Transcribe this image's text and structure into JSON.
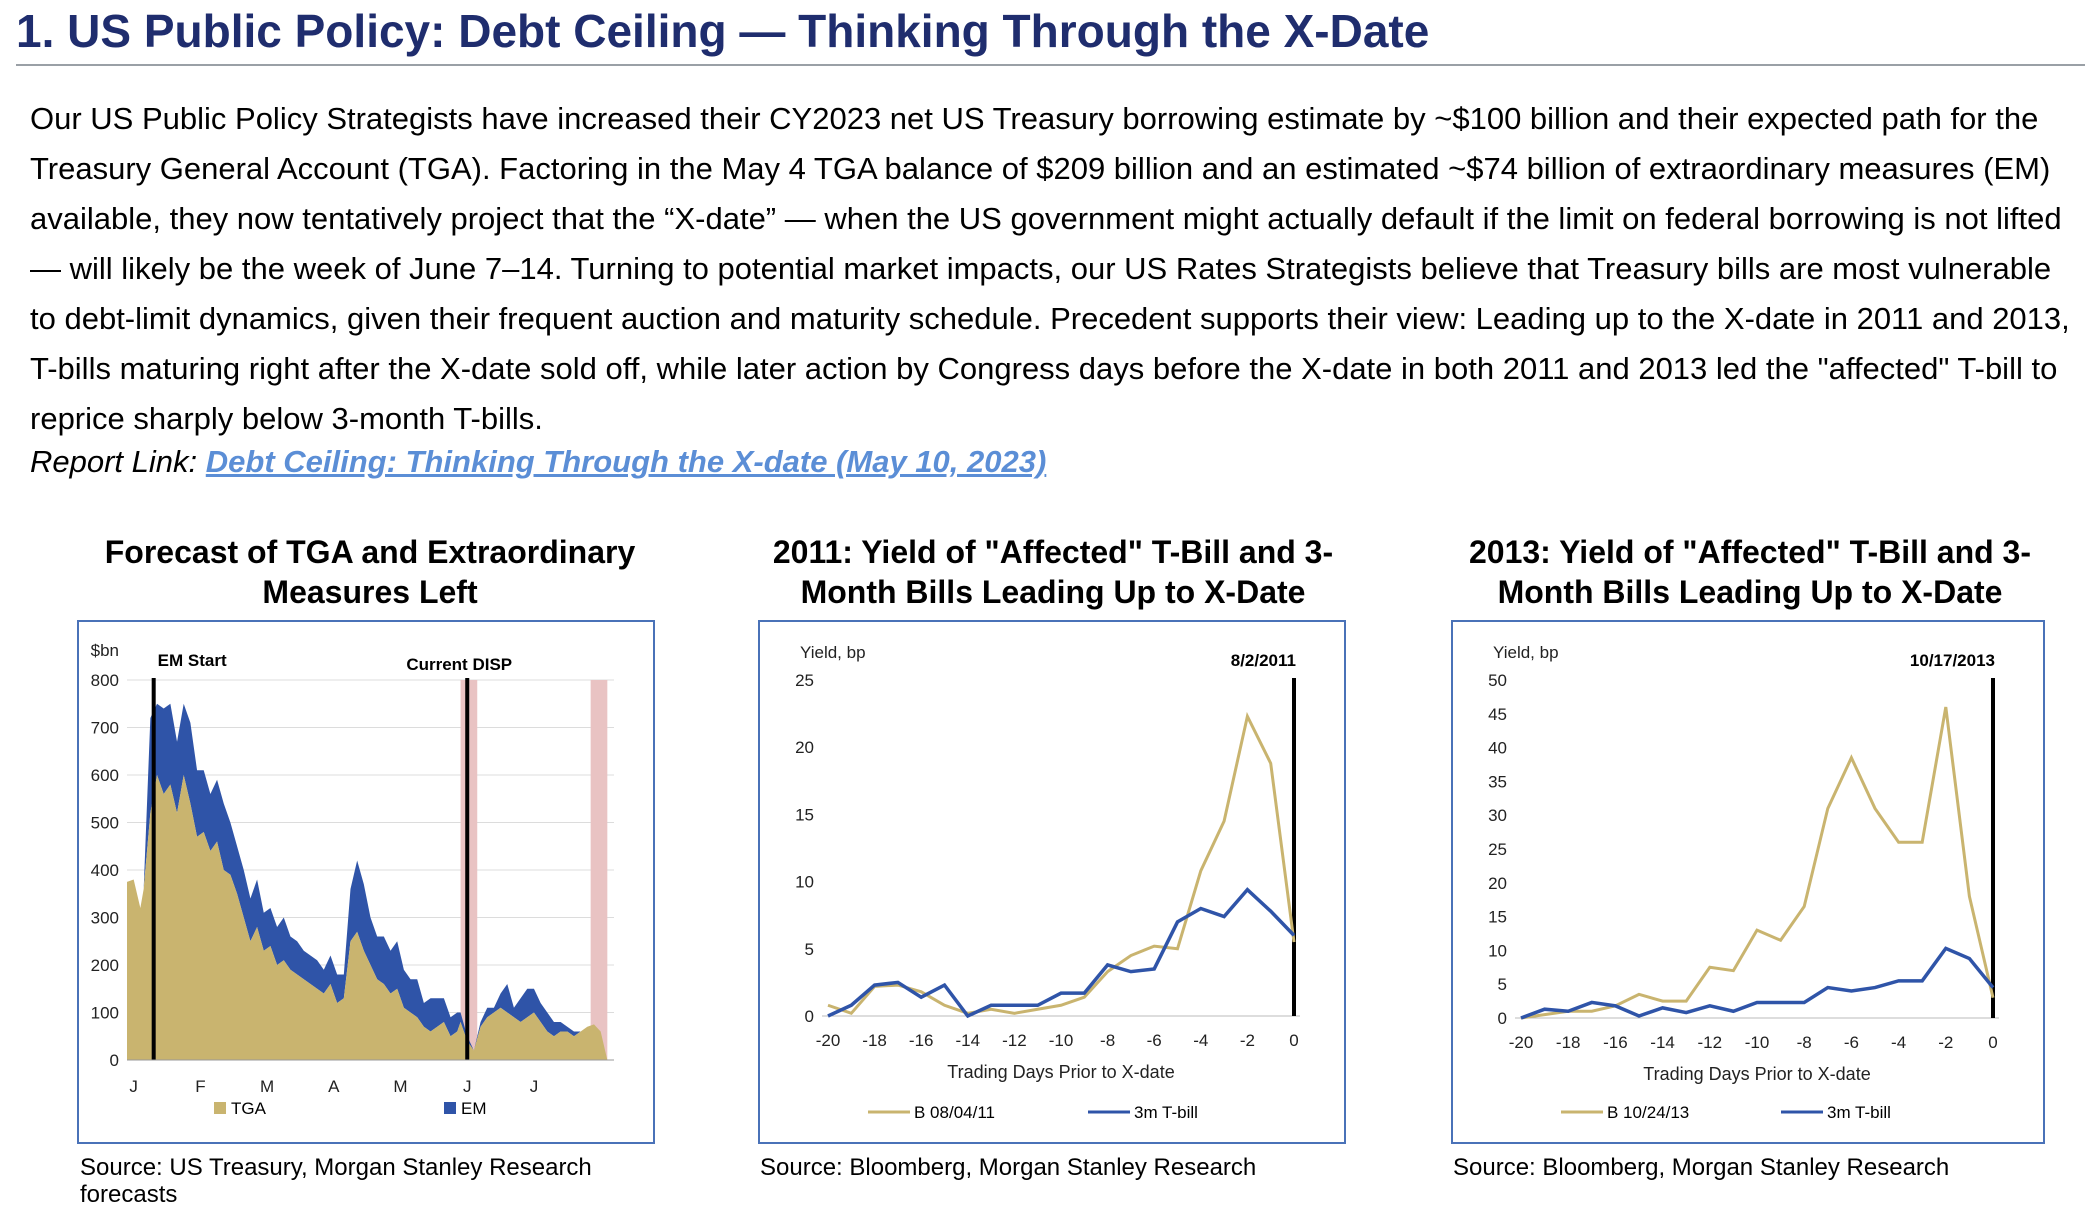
{
  "header": {
    "title": "1. US Public Policy: Debt Ceiling — Thinking Through the X-Date"
  },
  "body": {
    "paragraph": "Our US Public Policy Strategists have increased their CY2023 net US Treasury borrowing estimate by ~$100 billion and their expected path for the Treasury General Account (TGA). Factoring in the May 4 TGA balance of $209 billion and an estimated ~$74 billion of extraordinary measures (EM) available, they now tentatively project that the “X-date” — when the US government might actually default if the limit on federal borrowing is not lifted — will likely be the week of June 7–14. Turning to potential market impacts, our US Rates Strategists believe that Treasury bills are most vulnerable to debt-limit dynamics, given their frequent auction and maturity schedule. Precedent supports their view: Leading up to the X-date in 2011 and 2013, T-bills maturing right after the X-date sold off, while later action by Congress days before the X-date in both 2011 and 2013 led the \"affected\" T-bill to reprice sharply below 3-month T-bills.",
    "report_label": "Report Link:",
    "report_link": "Debt Ceiling: Thinking Through the X-date (May 10, 2023)"
  },
  "colors": {
    "title": "#1f2d6e",
    "gold": "#c9b46f",
    "blue": "#2f54a8",
    "pink": "#e9c3c3",
    "link": "#5b8ed6",
    "frame": "#4a72b8"
  },
  "chart_data": [
    {
      "type": "area",
      "title": "Forecast of TGA and Extraordinary Measures Left",
      "ylabel": "$bn",
      "ylim": [
        0,
        800
      ],
      "yticks": [
        "0",
        "100",
        "200",
        "300",
        "400",
        "500",
        "600",
        "700",
        "800"
      ],
      "xticks": [
        "J",
        "F",
        "M",
        "A",
        "M",
        "J",
        "J"
      ],
      "xlim": [
        0,
        7.3
      ],
      "annotations": [
        "EM Start",
        "Current DISP"
      ],
      "vlines": [
        0.4,
        5.1
      ],
      "shaded_ranges": [
        [
          5.0,
          5.25
        ],
        [
          6.95,
          7.2
        ]
      ],
      "series": [
        {
          "name": "TGA",
          "x": [
            0,
            0.1,
            0.2,
            0.25,
            0.35,
            0.45,
            0.55,
            0.65,
            0.75,
            0.85,
            0.95,
            1.05,
            1.15,
            1.25,
            1.35,
            1.45,
            1.55,
            1.65,
            1.75,
            1.85,
            1.95,
            2.05,
            2.15,
            2.25,
            2.35,
            2.45,
            2.55,
            2.65,
            2.75,
            2.85,
            2.95,
            3.05,
            3.15,
            3.25,
            3.35,
            3.45,
            3.55,
            3.65,
            3.75,
            3.85,
            3.95,
            4.05,
            4.15,
            4.25,
            4.35,
            4.45,
            4.55,
            4.65,
            4.75,
            4.85,
            4.95,
            5.0,
            5.1,
            5.2,
            5.3,
            5.4,
            5.5,
            5.6,
            5.7,
            5.8,
            5.9,
            6.0,
            6.1,
            6.2,
            6.3,
            6.4,
            6.5,
            6.6,
            6.7,
            6.8,
            6.9,
            7.0,
            7.1,
            7.2
          ],
          "values": [
            375,
            380,
            320,
            360,
            520,
            600,
            560,
            580,
            520,
            600,
            540,
            470,
            480,
            440,
            460,
            400,
            390,
            350,
            300,
            250,
            280,
            230,
            240,
            200,
            210,
            190,
            180,
            170,
            160,
            150,
            140,
            160,
            120,
            130,
            250,
            270,
            230,
            200,
            170,
            160,
            140,
            150,
            110,
            100,
            90,
            70,
            60,
            70,
            80,
            50,
            60,
            80,
            40,
            20,
            70,
            90,
            100,
            110,
            100,
            90,
            80,
            90,
            100,
            80,
            60,
            50,
            60,
            60,
            50,
            60,
            70,
            75,
            60,
            0
          ]
        },
        {
          "name": "EM",
          "x": [
            0,
            0.1,
            0.2,
            0.25,
            0.35,
            0.45,
            0.55,
            0.65,
            0.75,
            0.85,
            0.95,
            1.05,
            1.15,
            1.25,
            1.35,
            1.45,
            1.55,
            1.65,
            1.75,
            1.85,
            1.95,
            2.05,
            2.15,
            2.25,
            2.35,
            2.45,
            2.55,
            2.65,
            2.75,
            2.85,
            2.95,
            3.05,
            3.15,
            3.25,
            3.35,
            3.45,
            3.55,
            3.65,
            3.75,
            3.85,
            3.95,
            4.05,
            4.15,
            4.25,
            4.35,
            4.45,
            4.55,
            4.65,
            4.75,
            4.85,
            4.95,
            5.0,
            5.1,
            5.2,
            5.3,
            5.4,
            5.5,
            5.6,
            5.7,
            5.8,
            5.9,
            6.0,
            6.1,
            6.2,
            6.3,
            6.4,
            6.5,
            6.6,
            6.7,
            6.8,
            6.9,
            7.0,
            7.1,
            7.2
          ],
          "values": [
            0,
            0,
            0,
            0,
            200,
            150,
            180,
            170,
            150,
            150,
            170,
            140,
            130,
            120,
            130,
            140,
            110,
            100,
            100,
            90,
            100,
            80,
            80,
            80,
            90,
            70,
            70,
            60,
            60,
            60,
            50,
            60,
            60,
            50,
            110,
            150,
            140,
            100,
            90,
            100,
            90,
            100,
            80,
            70,
            80,
            50,
            70,
            60,
            50,
            40,
            40,
            20,
            10,
            0,
            10,
            20,
            10,
            30,
            60,
            20,
            50,
            60,
            50,
            40,
            40,
            30,
            20,
            10,
            10,
            0,
            0,
            0,
            0,
            0
          ]
        }
      ]
    },
    {
      "type": "line",
      "title": "2011: Yield of \"Affected\" T-Bill and 3-Month Bills Leading Up to X-Date",
      "ylabel": "Yield, bp",
      "xlabel": "Trading Days Prior to X-date",
      "ylim": [
        0,
        25
      ],
      "yticks": [
        "0",
        "5",
        "10",
        "15",
        "20",
        "25"
      ],
      "xlim": [
        -20,
        0
      ],
      "xticks": [
        "-20",
        "-18",
        "-16",
        "-14",
        "-12",
        "-10",
        "-8",
        "-6",
        "-4",
        "-2",
        "0"
      ],
      "annotation": "8/2/2011",
      "vline": 0,
      "series": [
        {
          "name": "B 08/04/11",
          "x": [
            -20,
            -19,
            -18,
            -17,
            -16,
            -15,
            -14,
            -13,
            -12,
            -11,
            -10,
            -9,
            -8,
            -7,
            -6,
            -5,
            -4,
            -3,
            -2,
            -1,
            0
          ],
          "values": [
            0.8,
            0.2,
            2.2,
            2.3,
            1.8,
            0.8,
            0.2,
            0.5,
            0.2,
            0.5,
            0.8,
            1.4,
            3.3,
            4.5,
            5.2,
            5.0,
            10.8,
            14.5,
            22.3,
            18.8,
            5.5
          ]
        },
        {
          "name": "3m T-bill",
          "x": [
            -20,
            -19,
            -18,
            -17,
            -16,
            -15,
            -14,
            -13,
            -12,
            -11,
            -10,
            -9,
            -8,
            -7,
            -6,
            -5,
            -4,
            -3,
            -2,
            -1,
            0
          ],
          "values": [
            0,
            0.8,
            2.3,
            2.5,
            1.4,
            2.3,
            0,
            0.8,
            0.8,
            0.8,
            1.7,
            1.7,
            3.8,
            3.3,
            3.5,
            7.0,
            8.0,
            7.4,
            9.4,
            7.8,
            6.0
          ]
        }
      ]
    },
    {
      "type": "line",
      "title": "2013: Yield of \"Affected\" T-Bill and 3-Month Bills Leading Up to X-Date",
      "ylabel": "Yield, bp",
      "xlabel": "Trading Days Prior to X-date",
      "ylim": [
        0,
        50
      ],
      "yticks": [
        "0",
        "5",
        "10",
        "15",
        "20",
        "25",
        "30",
        "35",
        "40",
        "45",
        "50"
      ],
      "xlim": [
        -20,
        0
      ],
      "xticks": [
        "-20",
        "-18",
        "-16",
        "-14",
        "-12",
        "-10",
        "-8",
        "-6",
        "-4",
        "-2",
        "0"
      ],
      "annotation": "10/17/2013",
      "vline": 0,
      "series": [
        {
          "name": "B 10/24/13",
          "x": [
            -20,
            -19,
            -18,
            -17,
            -16,
            -15,
            -14,
            -13,
            -12,
            -11,
            -10,
            -9,
            -8,
            -7,
            -6,
            -5,
            -4,
            -3,
            -2,
            -1,
            0
          ],
          "values": [
            0,
            0.5,
            1.0,
            1.0,
            1.8,
            3.5,
            2.5,
            2.5,
            7.5,
            7.0,
            13.0,
            11.5,
            16.5,
            31,
            38.5,
            31,
            26,
            26,
            46,
            18,
            3
          ]
        },
        {
          "name": "3m T-bill",
          "x": [
            -20,
            -19,
            -18,
            -17,
            -16,
            -15,
            -14,
            -13,
            -12,
            -11,
            -10,
            -9,
            -8,
            -7,
            -6,
            -5,
            -4,
            -3,
            -2,
            -1,
            0
          ],
          "values": [
            0,
            1.3,
            1.0,
            2.3,
            1.8,
            0.3,
            1.5,
            0.8,
            1.8,
            1.0,
            2.3,
            2.3,
            2.3,
            4.5,
            4.0,
            4.5,
            5.5,
            5.5,
            10.3,
            8.8,
            4.5
          ]
        }
      ]
    }
  ],
  "sources": [
    "Source: US Treasury, Morgan Stanley Research forecasts",
    "Source: Bloomberg, Morgan Stanley Research",
    "Source: Bloomberg, Morgan Stanley Research"
  ]
}
